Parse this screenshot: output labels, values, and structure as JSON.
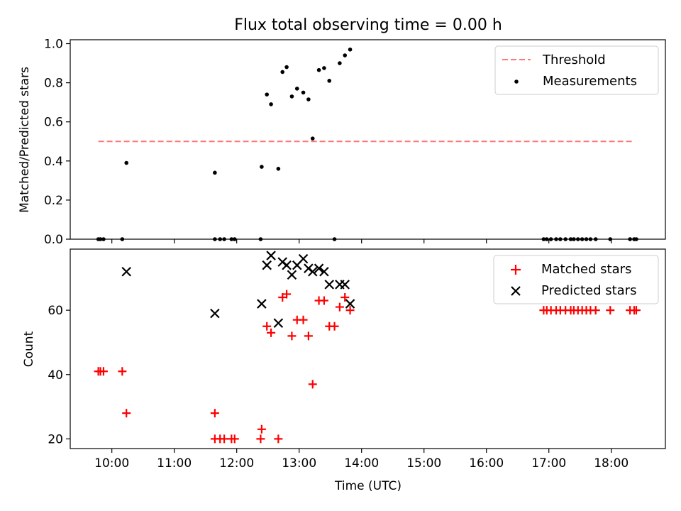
{
  "chart_data": [
    {
      "type": "scatter",
      "title": "Flux total observing time = 0.00 h",
      "xlabel": "",
      "ylabel": "Matched/Predicted stars",
      "xlim": [
        "09:20",
        "18:52"
      ],
      "ylim": [
        0,
        1.02
      ],
      "yticks": [
        0.0,
        0.2,
        0.4,
        0.6,
        0.8,
        1.0
      ],
      "ytick_labels": [
        "0.0",
        "0.2",
        "0.4",
        "0.6",
        "0.8",
        "1.0"
      ],
      "legend_position": "top-right",
      "grid": false,
      "series": [
        {
          "name": "Threshold",
          "kind": "line",
          "style": "dashed",
          "color": "#ff7777",
          "points": [
            [
              "09:47",
              0.5
            ],
            [
              "18:22",
              0.5
            ]
          ]
        },
        {
          "name": "Measurements",
          "kind": "scatter",
          "marker": "dot",
          "color": "#000000",
          "points": [
            [
              "09:47",
              0.0
            ],
            [
              "09:49",
              0.0
            ],
            [
              "09:52",
              0.0
            ],
            [
              "10:10",
              0.0
            ],
            [
              "10:14",
              0.39
            ],
            [
              "11:39",
              0.34
            ],
            [
              "11:39",
              0.0
            ],
            [
              "11:44",
              0.0
            ],
            [
              "11:48",
              0.0
            ],
            [
              "11:55",
              0.0
            ],
            [
              "11:58",
              0.0
            ],
            [
              "12:23",
              0.0
            ],
            [
              "12:24",
              0.37
            ],
            [
              "12:29",
              0.74
            ],
            [
              "12:33",
              0.69
            ],
            [
              "12:40",
              0.36
            ],
            [
              "12:44",
              0.855
            ],
            [
              "12:48",
              0.88
            ],
            [
              "12:53",
              0.73
            ],
            [
              "12:58",
              0.77
            ],
            [
              "13:04",
              0.75
            ],
            [
              "13:09",
              0.715
            ],
            [
              "13:13",
              0.515
            ],
            [
              "13:19",
              0.865
            ],
            [
              "13:24",
              0.875
            ],
            [
              "13:29",
              0.81
            ],
            [
              "13:34",
              0.0
            ],
            [
              "13:39",
              0.9
            ],
            [
              "13:44",
              0.94
            ],
            [
              "13:49",
              0.97
            ],
            [
              "16:55",
              0.0
            ],
            [
              "16:58",
              0.0
            ],
            [
              "17:02",
              0.0
            ],
            [
              "17:07",
              0.0
            ],
            [
              "17:11",
              0.0
            ],
            [
              "17:16",
              0.0
            ],
            [
              "17:21",
              0.0
            ],
            [
              "17:24",
              0.0
            ],
            [
              "17:28",
              0.0
            ],
            [
              "17:32",
              0.0
            ],
            [
              "17:36",
              0.0
            ],
            [
              "17:40",
              0.0
            ],
            [
              "17:45",
              0.0
            ],
            [
              "17:59",
              0.0
            ],
            [
              "18:18",
              0.0
            ],
            [
              "18:22",
              0.0
            ],
            [
              "18:24",
              0.0
            ]
          ]
        }
      ]
    },
    {
      "type": "scatter",
      "title": "",
      "xlabel": "Time (UTC)",
      "ylabel": "Count",
      "xlim": [
        "09:20",
        "18:52"
      ],
      "ylim": [
        17,
        79
      ],
      "yticks": [
        20,
        40,
        60
      ],
      "ytick_labels": [
        "20",
        "40",
        "60"
      ],
      "xticks": [
        "10:00",
        "11:00",
        "12:00",
        "13:00",
        "14:00",
        "15:00",
        "16:00",
        "17:00",
        "18:00"
      ],
      "legend_position": "top-right",
      "grid": false,
      "series": [
        {
          "name": "Matched stars",
          "kind": "scatter",
          "marker": "plus",
          "color": "#ff0000",
          "points": [
            [
              "09:47",
              41
            ],
            [
              "09:49",
              41
            ],
            [
              "09:52",
              41
            ],
            [
              "10:10",
              41
            ],
            [
              "10:14",
              28
            ],
            [
              "11:39",
              28
            ],
            [
              "11:39",
              20
            ],
            [
              "11:44",
              20
            ],
            [
              "11:48",
              20
            ],
            [
              "11:55",
              20
            ],
            [
              "11:58",
              20
            ],
            [
              "12:23",
              20
            ],
            [
              "12:24",
              23
            ],
            [
              "12:29",
              55
            ],
            [
              "12:33",
              53
            ],
            [
              "12:40",
              20
            ],
            [
              "12:44",
              64
            ],
            [
              "12:48",
              65
            ],
            [
              "12:53",
              52
            ],
            [
              "12:58",
              57
            ],
            [
              "13:04",
              57
            ],
            [
              "13:09",
              52
            ],
            [
              "13:13",
              37
            ],
            [
              "13:19",
              63
            ],
            [
              "13:24",
              63
            ],
            [
              "13:29",
              55
            ],
            [
              "13:34",
              55
            ],
            [
              "13:39",
              61
            ],
            [
              "13:44",
              64
            ],
            [
              "13:49",
              60
            ],
            [
              "16:55",
              60
            ],
            [
              "16:58",
              60
            ],
            [
              "17:02",
              60
            ],
            [
              "17:07",
              60
            ],
            [
              "17:11",
              60
            ],
            [
              "17:16",
              60
            ],
            [
              "17:21",
              60
            ],
            [
              "17:24",
              60
            ],
            [
              "17:28",
              60
            ],
            [
              "17:32",
              60
            ],
            [
              "17:36",
              60
            ],
            [
              "17:40",
              60
            ],
            [
              "17:45",
              60
            ],
            [
              "17:59",
              60
            ],
            [
              "18:18",
              60
            ],
            [
              "18:22",
              60
            ],
            [
              "18:24",
              60
            ]
          ]
        },
        {
          "name": "Predicted stars",
          "kind": "scatter",
          "marker": "x",
          "color": "#000000",
          "points": [
            [
              "10:14",
              72
            ],
            [
              "11:39",
              59
            ],
            [
              "12:24",
              62
            ],
            [
              "12:29",
              74
            ],
            [
              "12:33",
              77
            ],
            [
              "12:40",
              56
            ],
            [
              "12:44",
              75
            ],
            [
              "12:48",
              74
            ],
            [
              "12:53",
              71
            ],
            [
              "12:58",
              74
            ],
            [
              "13:04",
              76
            ],
            [
              "13:09",
              73
            ],
            [
              "13:13",
              72
            ],
            [
              "13:19",
              73
            ],
            [
              "13:24",
              72
            ],
            [
              "13:29",
              68
            ],
            [
              "13:39",
              68
            ],
            [
              "13:44",
              68
            ],
            [
              "13:49",
              62
            ]
          ]
        }
      ]
    }
  ]
}
